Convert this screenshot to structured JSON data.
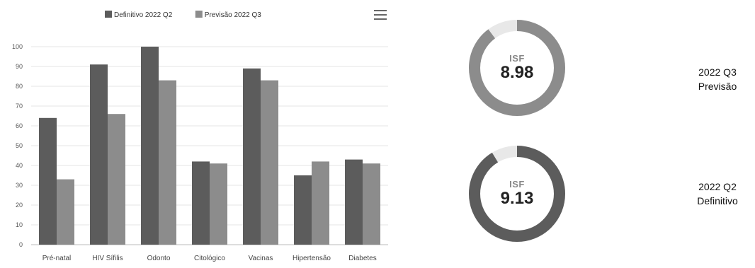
{
  "chart_data": {
    "type": "bar",
    "categories": [
      "Pré-natal",
      "HIV Sífilis",
      "Odonto",
      "Citológico",
      "Vacinas",
      "Hipertensão",
      "Diabetes"
    ],
    "series": [
      {
        "name": "Definitivo 2022 Q2",
        "values": [
          64,
          91,
          100,
          42,
          89,
          35,
          43
        ],
        "color": "#5c5c5c"
      },
      {
        "name": "Previsão 2022 Q3",
        "values": [
          33,
          66,
          83,
          41,
          83,
          42,
          41
        ],
        "color": "#8c8c8c"
      }
    ],
    "ylim": [
      0,
      100
    ],
    "yticks": [
      0,
      10,
      20,
      30,
      40,
      50,
      60,
      70,
      80,
      90,
      100
    ],
    "grid": true,
    "legend_placement": "top"
  },
  "kpis": [
    {
      "label": "ISF",
      "value": "8.98",
      "period": "2022 Q3",
      "status": "Previsão",
      "score": 8.98,
      "max": 10,
      "fill_color": "#8c8c8c"
    },
    {
      "label": "ISF",
      "value": "9.13",
      "period": "2022 Q2",
      "status": "Definitivo",
      "score": 9.13,
      "max": 10,
      "fill_color": "#5c5c5c"
    }
  ],
  "icons": {
    "menu": "hamburger-menu-icon"
  }
}
